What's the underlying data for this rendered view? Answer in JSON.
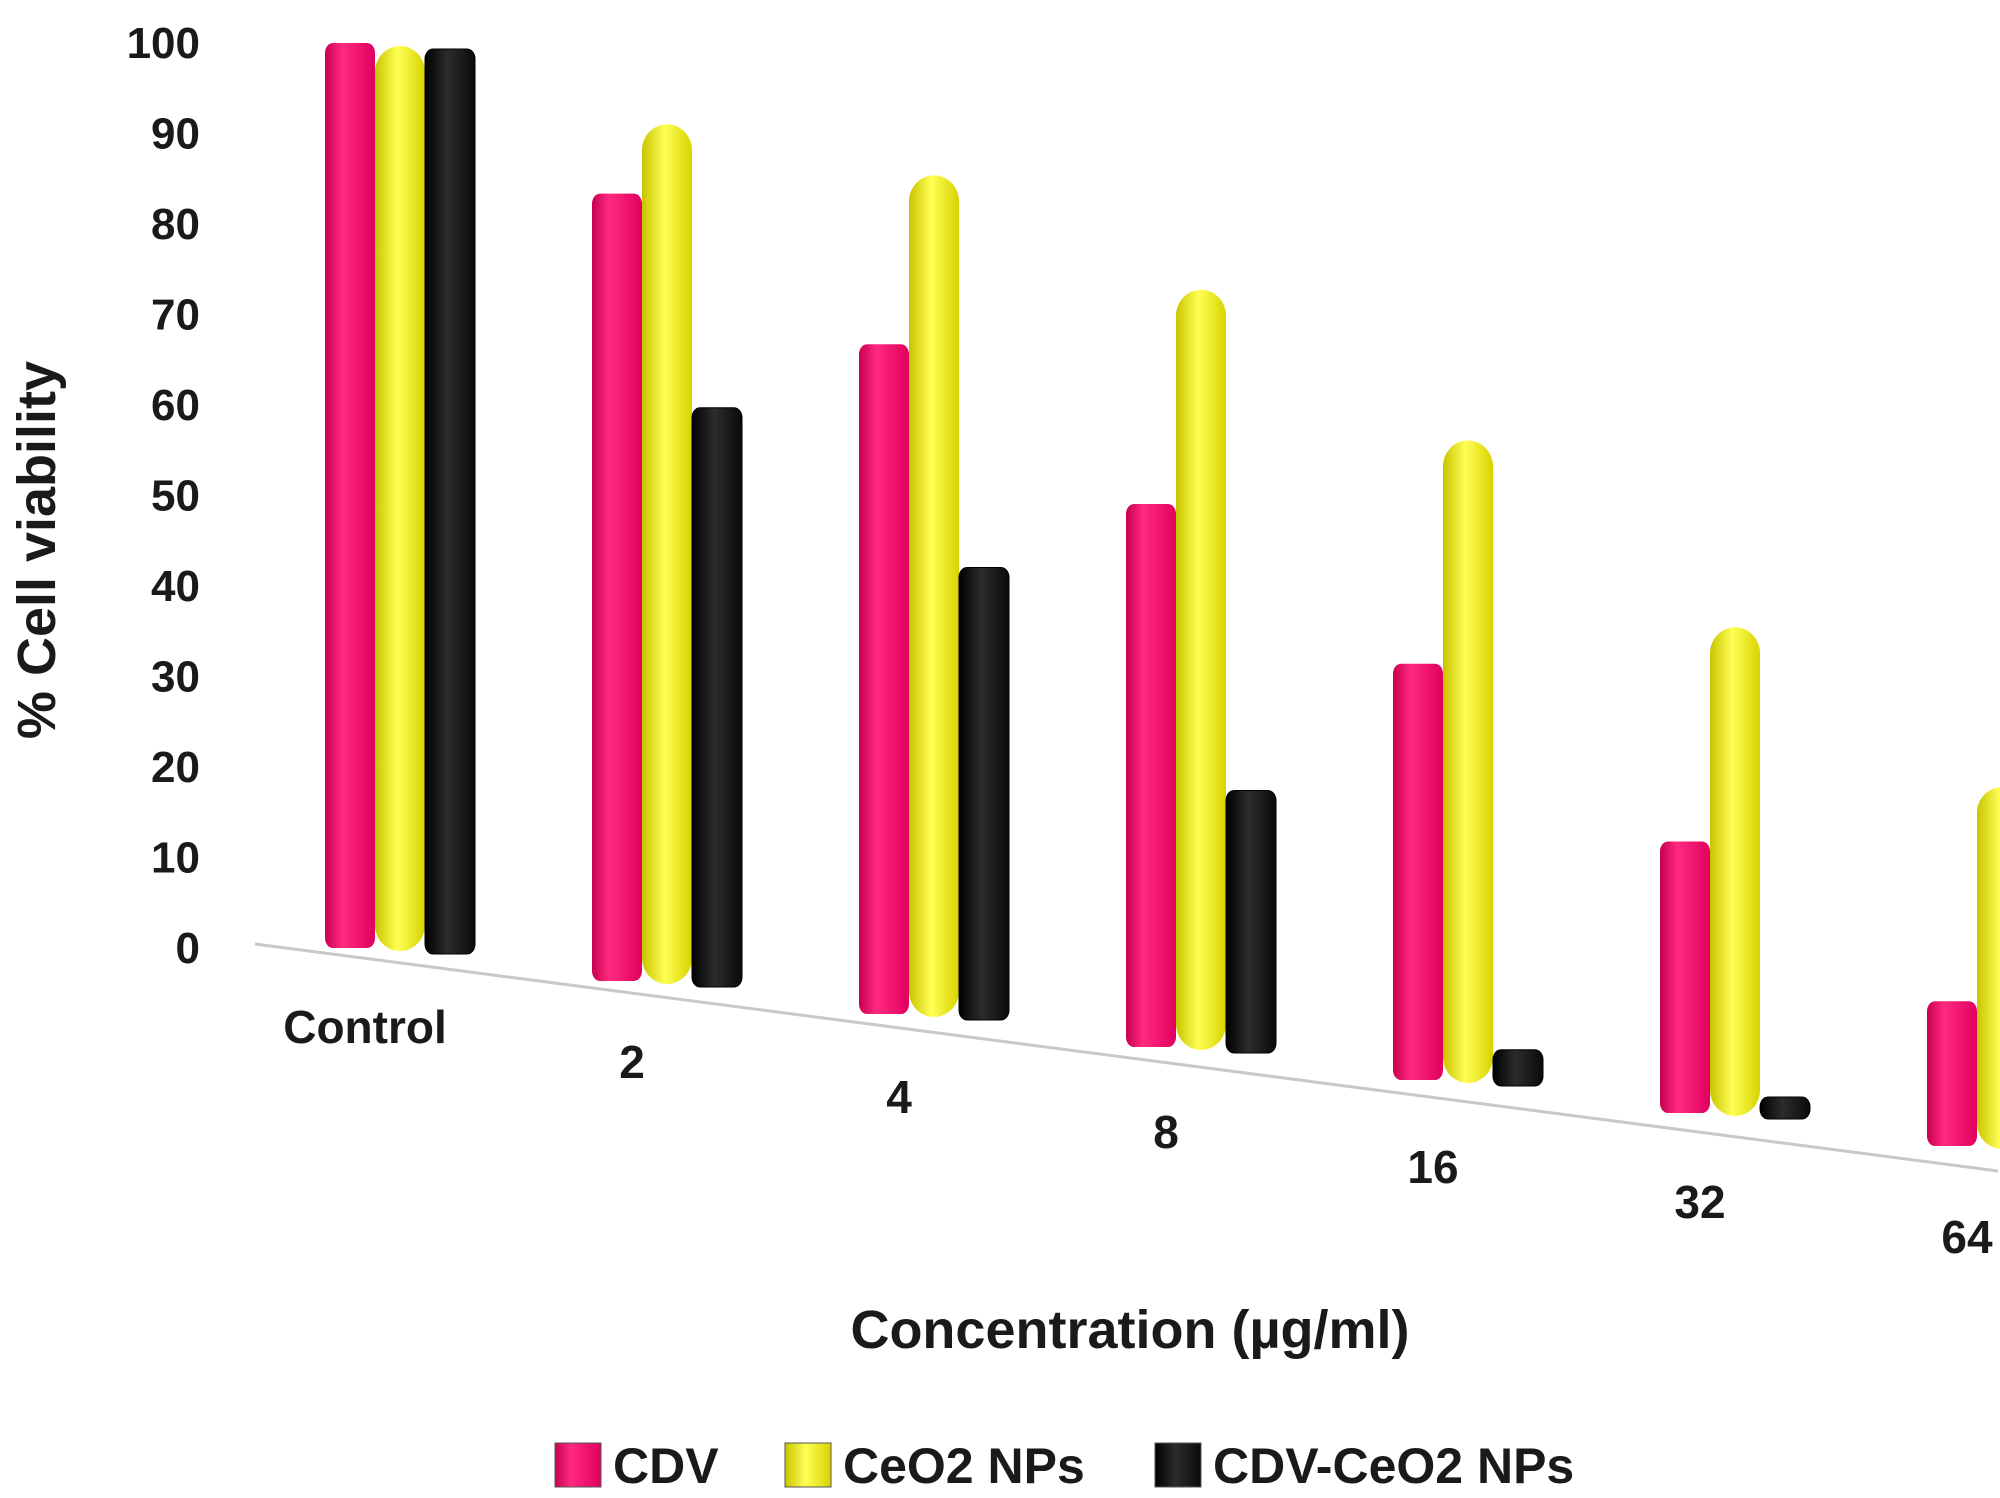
{
  "chart_data": {
    "type": "bar",
    "title": "",
    "xlabel": "Concentration (µg/ml)",
    "ylabel": "% Cell viability",
    "ylim": [
      0,
      100
    ],
    "yticks": [
      "0",
      "10",
      "20",
      "30",
      "40",
      "50",
      "60",
      "70",
      "80",
      "90",
      "100"
    ],
    "categories": [
      "Control",
      "2",
      "4",
      "8",
      "16",
      "32",
      "64"
    ],
    "series": [
      {
        "name": "CDV",
        "color": "#ff0a6c",
        "values": [
          100,
          87,
          74,
          60,
          46,
          30,
          16
        ]
      },
      {
        "name": "CeO2 NPs",
        "color": "#f5f00a",
        "values": [
          100,
          95,
          93,
          84,
          71,
          54,
          40
        ]
      },
      {
        "name": "CDV-CeO2 NPs",
        "color": "#141414",
        "values": [
          100,
          64,
          50,
          29,
          4,
          1,
          0.5
        ]
      }
    ],
    "legend_position": "bottom",
    "grid": false,
    "style": "3d-perspective"
  }
}
